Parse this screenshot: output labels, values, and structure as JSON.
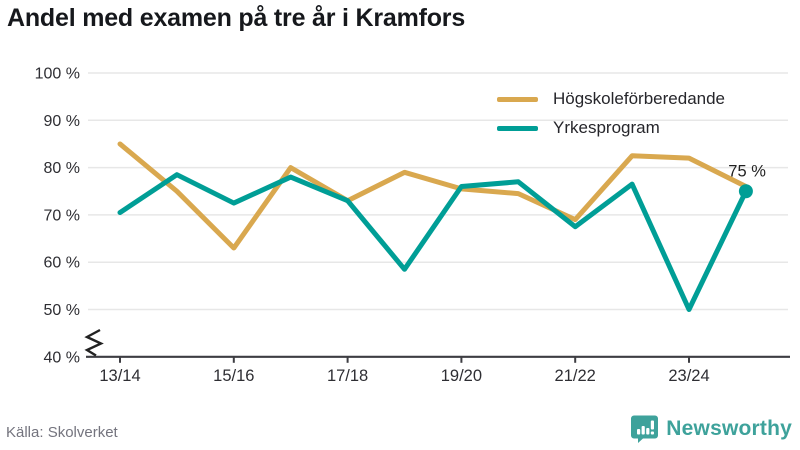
{
  "title": "Andel med examen på tre år i Kramfors",
  "source": "Källa: Skolverket",
  "branding": {
    "name": "Newsworthy",
    "icon": "bar-chart-speech-bubble-icon",
    "color": "#3ea29b"
  },
  "colors": {
    "hogskoleforberedande": "#d9a84f",
    "yrkesprogram": "#009e96",
    "grid": "#e7e7e7",
    "axis": "#3d3d42",
    "title_text": "#16181c",
    "tick_text": "#2e2e33",
    "annotation_text": "#222222",
    "source_text": "#74747e"
  },
  "chart_data": {
    "type": "line",
    "title": "Andel med examen på tre år i Kramfors",
    "xlabel": "",
    "ylabel": "",
    "x": [
      "13/14",
      "14/15",
      "15/16",
      "16/17",
      "17/18",
      "18/19",
      "19/20",
      "20/21",
      "21/22",
      "22/23",
      "23/24",
      "24/25"
    ],
    "x_tick_labels": [
      "13/14",
      "15/16",
      "17/18",
      "19/20",
      "21/22",
      "23/24"
    ],
    "y_ticks": [
      100,
      90,
      80,
      70,
      60,
      50,
      40
    ],
    "y_tick_labels": [
      "100 %",
      "90 %",
      "80 %",
      "70 %",
      "60 %",
      "50 %",
      "40 %"
    ],
    "ylim": [
      40,
      100
    ],
    "axis_break_below": 50,
    "grid": "horizontal",
    "legend_position": "top-right",
    "series": [
      {
        "name": "Högskoleförberedande",
        "color": "#d9a84f",
        "values": [
          85,
          75,
          63,
          80,
          73,
          79,
          75.5,
          74.5,
          69,
          82.5,
          82,
          76
        ]
      },
      {
        "name": "Yrkesprogram",
        "color": "#009e96",
        "values": [
          70.5,
          78.5,
          72.5,
          78,
          73,
          58.5,
          76,
          77,
          67.5,
          76.5,
          50,
          75
        ],
        "end_dot": true,
        "end_label": "75 %"
      }
    ]
  }
}
